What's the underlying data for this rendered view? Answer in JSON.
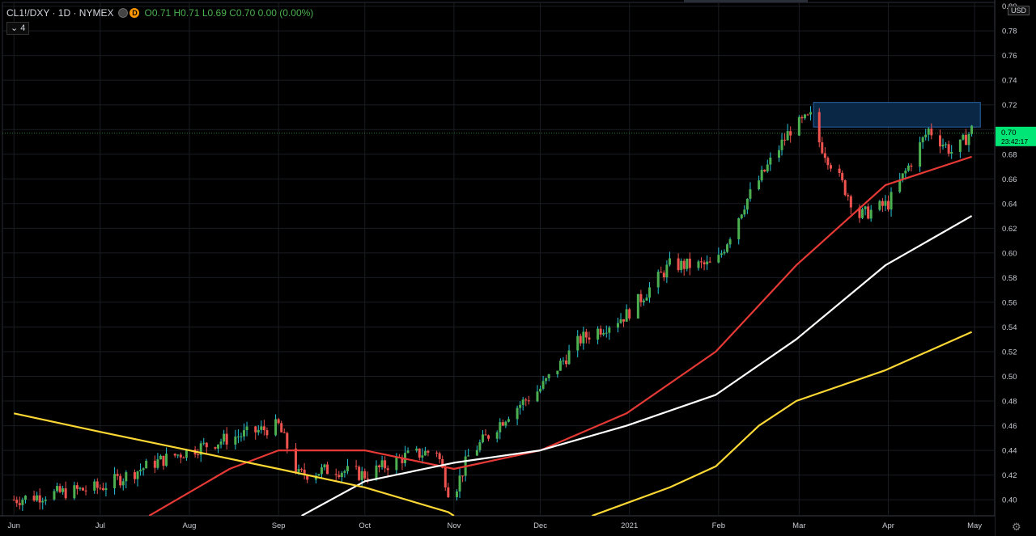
{
  "header": {
    "symbol": "CL1!/DXY · 1D · NYMEX",
    "indicator_badge": "D",
    "ohlc": "O0.71 H0.71 L0.69 C0.70 0.00 (0.00%)",
    "indicators_count": "4"
  },
  "price_scale": {
    "currency": "USD",
    "last_price": "0.70",
    "countdown": "23:42:17"
  },
  "icons": [
    "eye-icon",
    "gear-icon",
    "chevron-down-icon"
  ],
  "colors": {
    "up": "#4caf50",
    "down": "#ef5350",
    "wick_up": "#26c6da",
    "ma_red": "#e53935",
    "ma_white": "#ffffff",
    "ma_yellow": "#fdd835",
    "box": "#1e4a7a",
    "last_price_bg": "#00e676"
  },
  "chart_data": {
    "type": "candlestick",
    "x_ticks": [
      "Jun",
      "Jul",
      "Aug",
      "Sep",
      "Oct",
      "Nov",
      "Dec",
      "2021",
      "Feb",
      "Mar",
      "Apr",
      "May"
    ],
    "y_ticks": [
      "0.80",
      "0.78",
      "0.76",
      "0.74",
      "0.72",
      "0.70",
      "0.68",
      "0.66",
      "0.64",
      "0.62",
      "0.60",
      "0.58",
      "0.56",
      "0.54",
      "0.52",
      "0.50",
      "0.48",
      "0.46",
      "0.44",
      "0.42",
      "0.40"
    ],
    "ylim": [
      0.387,
      0.803
    ],
    "close_anchors": [
      [
        "2020-06-01",
        0.4
      ],
      [
        "2020-06-15",
        0.405
      ],
      [
        "2020-07-01",
        0.41
      ],
      [
        "2020-07-20",
        0.43
      ],
      [
        "2020-08-01",
        0.44
      ],
      [
        "2020-08-15",
        0.45
      ],
      [
        "2020-09-01",
        0.46
      ],
      [
        "2020-09-08",
        0.42
      ],
      [
        "2020-09-20",
        0.425
      ],
      [
        "2020-10-01",
        0.42
      ],
      [
        "2020-10-15",
        0.435
      ],
      [
        "2020-10-26",
        0.44
      ],
      [
        "2020-10-31",
        0.4
      ],
      [
        "2020-11-06",
        0.435
      ],
      [
        "2020-11-20",
        0.47
      ],
      [
        "2020-12-01",
        0.49
      ],
      [
        "2020-12-15",
        0.53
      ],
      [
        "2020-12-31",
        0.55
      ],
      [
        "2021-01-15",
        0.59
      ],
      [
        "2021-01-31",
        0.59
      ],
      [
        "2021-02-10",
        0.64
      ],
      [
        "2021-02-26",
        0.7
      ],
      [
        "2021-03-05",
        0.71
      ],
      [
        "2021-03-08",
        0.69
      ],
      [
        "2021-03-22",
        0.63
      ],
      [
        "2021-04-01",
        0.64
      ],
      [
        "2021-04-15",
        0.7
      ],
      [
        "2021-04-24",
        0.68
      ],
      [
        "2021-04-30",
        0.7
      ]
    ],
    "moving_averages": [
      {
        "color": "#e53935",
        "points": [
          [
            "2020-07-18",
            0.387
          ],
          [
            "2020-08-15",
            0.425
          ],
          [
            "2020-09-01",
            0.44
          ],
          [
            "2020-10-01",
            0.44
          ],
          [
            "2020-11-01",
            0.425
          ],
          [
            "2020-12-01",
            0.44
          ],
          [
            "2020-12-31",
            0.47
          ],
          [
            "2021-01-31",
            0.52
          ],
          [
            "2021-02-28",
            0.59
          ],
          [
            "2021-03-31",
            0.655
          ],
          [
            "2021-04-30",
            0.678
          ]
        ]
      },
      {
        "color": "#ffffff",
        "points": [
          [
            "2020-09-09",
            0.387
          ],
          [
            "2020-10-01",
            0.415
          ],
          [
            "2020-11-01",
            0.43
          ],
          [
            "2020-12-01",
            0.44
          ],
          [
            "2020-12-31",
            0.46
          ],
          [
            "2021-01-31",
            0.485
          ],
          [
            "2021-02-28",
            0.53
          ],
          [
            "2021-03-31",
            0.59
          ],
          [
            "2021-04-30",
            0.63
          ]
        ]
      },
      {
        "color": "#fdd835",
        "points": [
          [
            "2020-06-01",
            0.47
          ],
          [
            "2020-07-01",
            0.455
          ],
          [
            "2020-08-01",
            0.44
          ],
          [
            "2020-09-01",
            0.425
          ],
          [
            "2020-10-01",
            0.41
          ],
          [
            "2020-10-30",
            0.39
          ],
          [
            "2020-11-01",
            0.387
          ]
        ]
      },
      {
        "color": "#fdd835",
        "points": [
          [
            "2020-12-19",
            0.387
          ],
          [
            "2021-01-15",
            0.41
          ],
          [
            "2021-01-31",
            0.427
          ],
          [
            "2021-02-15",
            0.46
          ],
          [
            "2021-02-28",
            0.48
          ],
          [
            "2021-03-31",
            0.505
          ],
          [
            "2021-04-30",
            0.536
          ]
        ]
      }
    ],
    "box": {
      "from": "2021-03-06",
      "to": "2021-05-03",
      "top": 0.722,
      "bottom": 0.702
    },
    "last_price": 0.697
  }
}
